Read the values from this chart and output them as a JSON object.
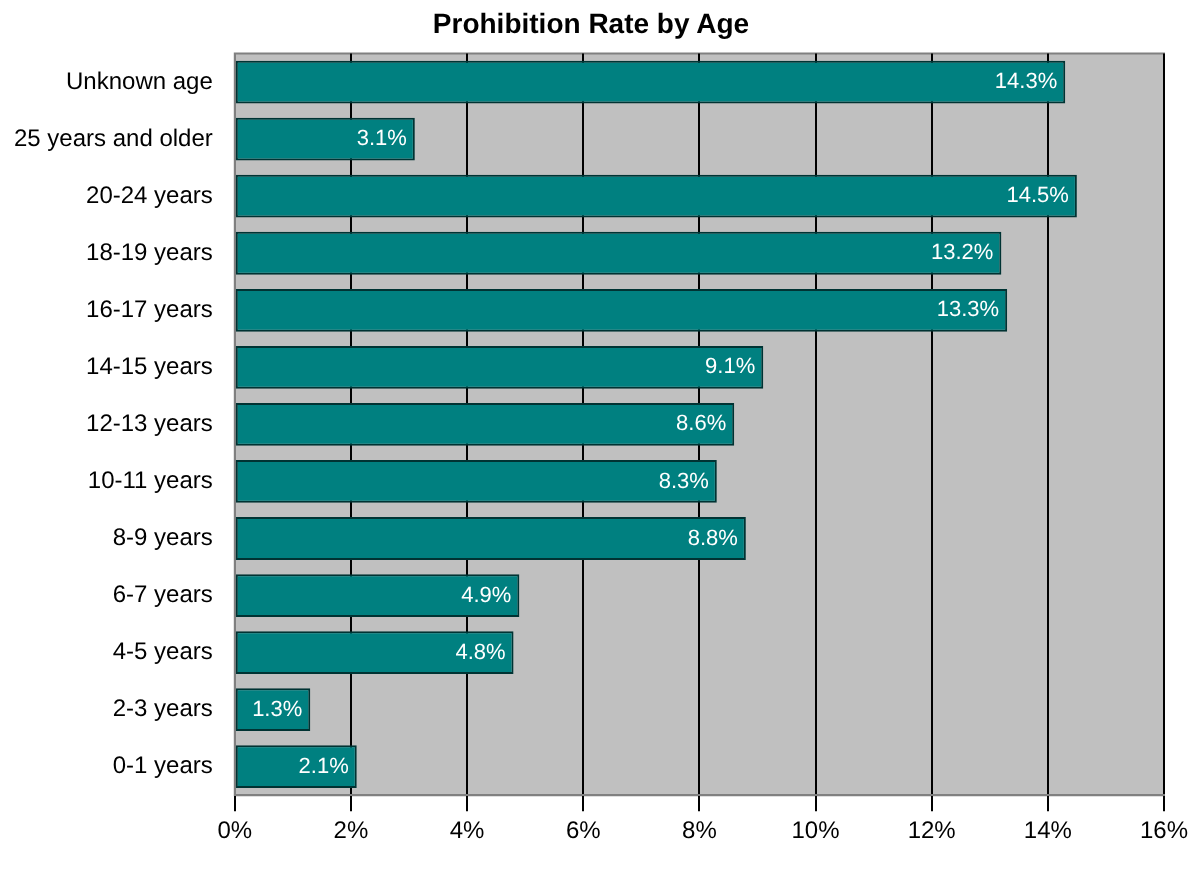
{
  "chart_data": {
    "type": "bar",
    "orientation": "horizontal",
    "title": "Prohibition Rate by Age",
    "categories": [
      "Unknown age",
      "25 years and older",
      "20-24 years",
      "18-19 years",
      "16-17 years",
      "14-15 years",
      "12-13 years",
      "10-11 years",
      "8-9 years",
      "6-7 years",
      "4-5 years",
      "2-3 years",
      "0-1 years"
    ],
    "values": [
      14.3,
      3.1,
      14.5,
      13.2,
      13.3,
      9.1,
      8.6,
      8.3,
      8.8,
      4.9,
      4.8,
      1.3,
      2.1
    ],
    "value_labels": [
      "14.3%",
      "3.1%",
      "14.5%",
      "13.2%",
      "13.3%",
      "9.1%",
      "8.6%",
      "8.3%",
      "8.8%",
      "4.9%",
      "4.8%",
      "1.3%",
      "2.1%"
    ],
    "color": "#008080",
    "xlim": [
      0,
      16
    ],
    "xticks": [
      {
        "value": 0,
        "label": "0%"
      },
      {
        "value": 2,
        "label": "2%"
      },
      {
        "value": 4,
        "label": "4%"
      },
      {
        "value": 6,
        "label": "6%"
      },
      {
        "value": 8,
        "label": "8%"
      },
      {
        "value": 10,
        "label": "10%"
      },
      {
        "value": 12,
        "label": "12%"
      },
      {
        "value": 14,
        "label": "14%"
      },
      {
        "value": 16,
        "label": "16%"
      }
    ],
    "grid": "x",
    "legend": false
  }
}
